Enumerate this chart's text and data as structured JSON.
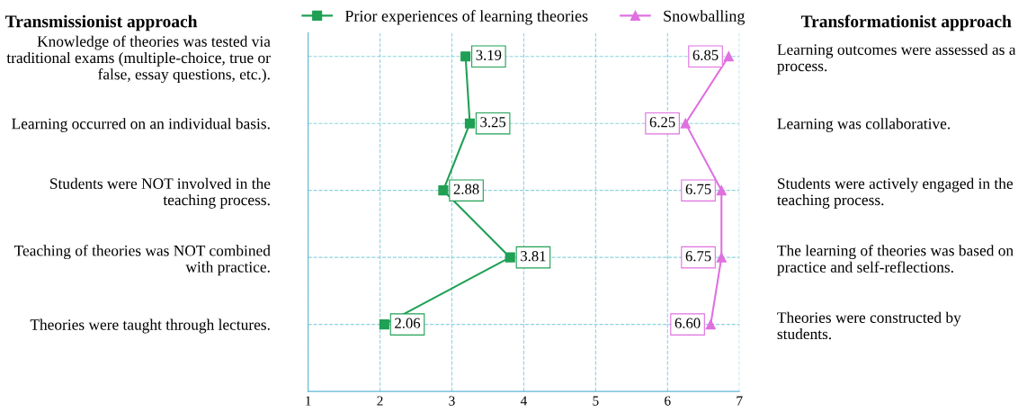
{
  "chart_data": {
    "type": "line",
    "orientation": "horizontal",
    "ylabel": "Transmissionist approach",
    "y2label": "Transformationist approach",
    "categories": [
      "Knowledge of theories was tested via\ntraditional exams (multiple-choice, true or\nfalse, essay questions, etc.).",
      "Learning occurred on an individual basis.",
      "Students were NOT involved in the\nteaching process.",
      "Teaching of theories was NOT combined\nwith practice.",
      "Theories were taught through lectures."
    ],
    "y2_categories": [
      "Learning outcomes were assessed as a\nprocess.",
      "Learning was collaborative.",
      "Students were actively engaged in the\nteaching process.",
      "The learning of theories was based on\npractice and self-reflections.",
      "Theories were constructed by\nstudents."
    ],
    "series": [
      {
        "name": "Prior experiences of learning theories",
        "color": "#1fa055",
        "marker": "square",
        "values": [
          3.19,
          3.25,
          2.88,
          3.81,
          2.06
        ],
        "value_labels": [
          "3.19",
          "3.25",
          "2.88",
          "3.81",
          "2.06"
        ]
      },
      {
        "name": "Snowballing",
        "color": "#e070e0",
        "marker": "triangle",
        "values": [
          6.85,
          6.25,
          6.75,
          6.75,
          6.6
        ],
        "value_labels": [
          "6.85",
          "6.25",
          "6.75",
          "6.75",
          "6.60"
        ]
      }
    ],
    "xlim": [
      1,
      7
    ],
    "xticks": [
      1,
      2,
      3,
      4,
      5,
      6,
      7
    ],
    "grid": true,
    "legend": "top",
    "line_style": "solid"
  }
}
